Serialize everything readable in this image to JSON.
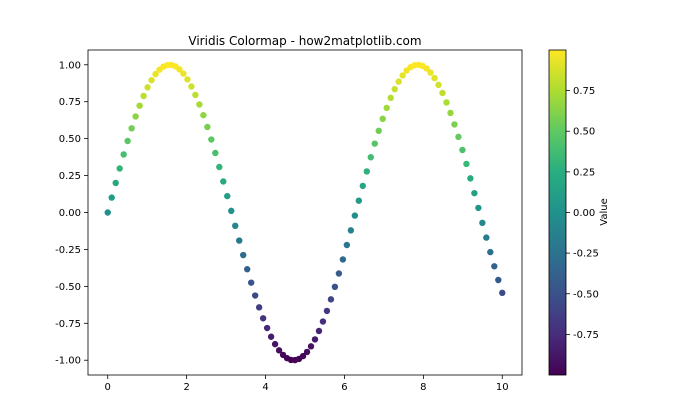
{
  "chart_data": {
    "type": "scatter",
    "title": "Viridis Colormap - how2matplotlib.com",
    "xlabel": "",
    "ylabel": "",
    "xlim": [
      -0.5,
      10.5
    ],
    "ylim": [
      -1.1,
      1.1
    ],
    "grid": false,
    "x_ticks": [
      "0",
      "2",
      "4",
      "6",
      "8",
      "10"
    ],
    "x_tick_values": [
      0,
      2,
      4,
      6,
      8,
      10
    ],
    "y_ticks": [
      "-1.00",
      "-0.75",
      "-0.50",
      "-0.25",
      "0.00",
      "0.25",
      "0.50",
      "0.75",
      "1.00"
    ],
    "y_tick_values": [
      -1.0,
      -0.75,
      -0.5,
      -0.25,
      0.0,
      0.25,
      0.5,
      0.75,
      1.0
    ],
    "series": [
      {
        "marker": "circle",
        "color_by": "y",
        "x": [
          0.0,
          0.101,
          0.202,
          0.303,
          0.404,
          0.505,
          0.606,
          0.707,
          0.808,
          0.909,
          1.01,
          1.111,
          1.212,
          1.313,
          1.414,
          1.515,
          1.616,
          1.717,
          1.818,
          1.919,
          2.02,
          2.121,
          2.222,
          2.323,
          2.424,
          2.525,
          2.626,
          2.727,
          2.828,
          2.929,
          3.03,
          3.131,
          3.232,
          3.333,
          3.434,
          3.535,
          3.636,
          3.737,
          3.838,
          3.939,
          4.04,
          4.141,
          4.242,
          4.343,
          4.444,
          4.545,
          4.646,
          4.747,
          4.848,
          4.949,
          5.051,
          5.152,
          5.253,
          5.354,
          5.455,
          5.556,
          5.657,
          5.758,
          5.859,
          5.96,
          6.061,
          6.162,
          6.263,
          6.364,
          6.465,
          6.566,
          6.667,
          6.768,
          6.869,
          6.97,
          7.071,
          7.172,
          7.273,
          7.374,
          7.475,
          7.576,
          7.677,
          7.778,
          7.879,
          7.98,
          8.081,
          8.182,
          8.283,
          8.384,
          8.485,
          8.586,
          8.687,
          8.788,
          8.889,
          8.99,
          9.091,
          9.192,
          9.293,
          9.394,
          9.495,
          9.596,
          9.697,
          9.798,
          9.899,
          10.0
        ],
        "y": [
          0.0,
          0.101,
          0.2,
          0.298,
          0.393,
          0.484,
          0.57,
          0.65,
          0.723,
          0.789,
          0.847,
          0.896,
          0.937,
          0.967,
          0.988,
          0.998,
          0.999,
          0.989,
          0.969,
          0.94,
          0.901,
          0.853,
          0.796,
          0.731,
          0.659,
          0.579,
          0.494,
          0.403,
          0.308,
          0.21,
          0.111,
          0.011,
          -0.09,
          -0.19,
          -0.288,
          -0.384,
          -0.475,
          -0.562,
          -0.642,
          -0.716,
          -0.782,
          -0.841,
          -0.891,
          -0.933,
          -0.964,
          -0.986,
          -0.998,
          -0.999,
          -0.991,
          -0.972,
          -0.944,
          -0.906,
          -0.859,
          -0.802,
          -0.738,
          -0.666,
          -0.588,
          -0.503,
          -0.413,
          -0.318,
          -0.22,
          -0.121,
          -0.021,
          0.08,
          0.18,
          0.278,
          0.374,
          0.466,
          0.553,
          0.634,
          0.708,
          0.776,
          0.835,
          0.886,
          0.928,
          0.961,
          0.984,
          0.997,
          1.0,
          0.992,
          0.975,
          0.947,
          0.91,
          0.864,
          0.809,
          0.745,
          0.674,
          0.596,
          0.512,
          0.423,
          0.329,
          0.231,
          0.131,
          0.031,
          -0.07,
          -0.17,
          -0.268,
          -0.364,
          -0.457,
          -0.544
        ]
      }
    ],
    "colorbar": {
      "label": "Value",
      "colormap": "viridis",
      "range": [
        -0.9999,
        0.9998
      ],
      "ticks": [
        "-0.75",
        "-0.50",
        "-0.25",
        "0.00",
        "0.25",
        "0.50",
        "0.75"
      ],
      "tick_values": [
        -0.75,
        -0.5,
        -0.25,
        0.0,
        0.25,
        0.5,
        0.75
      ]
    }
  }
}
